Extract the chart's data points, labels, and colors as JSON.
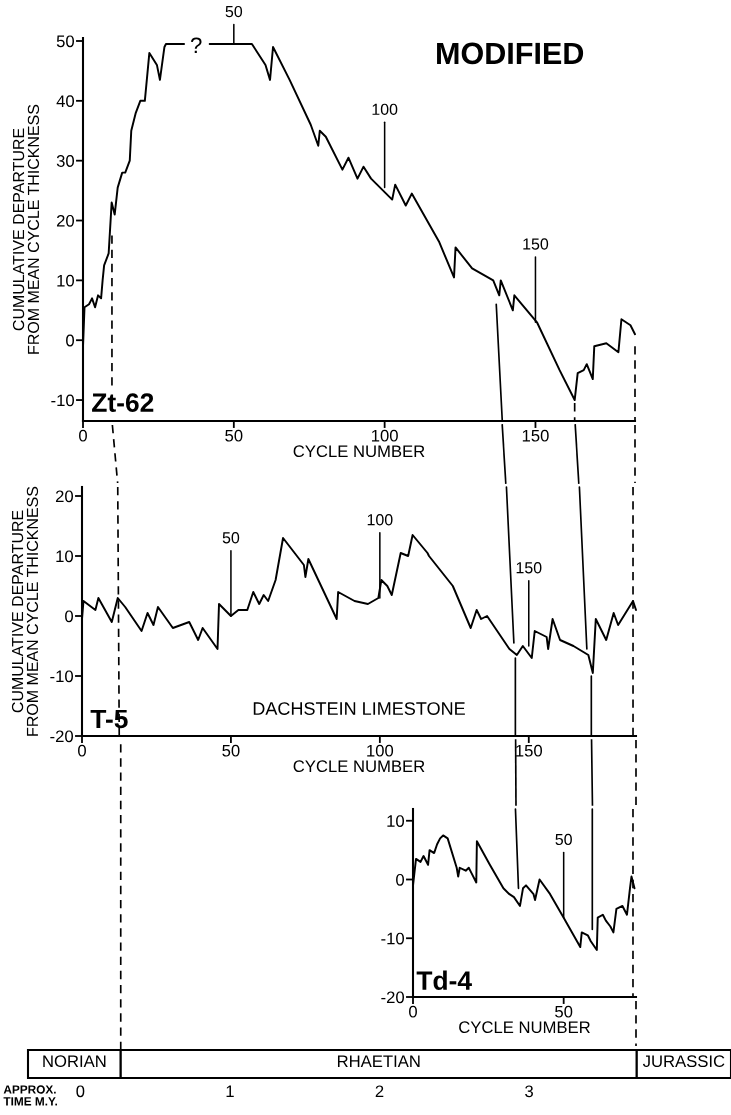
{
  "chart_data": [
    {
      "type": "line",
      "title": "Zt-62",
      "xlabel": "CYCLE NUMBER",
      "ylabel": "CUMULATIVE DEPARTURE\nFROM MEAN CYCLE THICKNESS",
      "xlim": [
        0,
        183
      ],
      "xticks": [
        0,
        50,
        100,
        150
      ],
      "ylim": [
        -13.5,
        50.5
      ],
      "yticks": [
        -10,
        0,
        10,
        20,
        30,
        40,
        50
      ],
      "series": [
        {
          "color": "#000000",
          "x": [
            0,
            0.5,
            2,
            3,
            4,
            5,
            6,
            6.5,
            7,
            8.5,
            9.5,
            10.5,
            11.5,
            13,
            14,
            15.5,
            16,
            17.5,
            19,
            20.5,
            22,
            24.5,
            25.5,
            27,
            27.5,
            33.5,
            37.5,
            42,
            56,
            60.5,
            62,
            63,
            68.5,
            75.5,
            78,
            78.5,
            80.5,
            86,
            88,
            91,
            93,
            95.5,
            102.5,
            103.5,
            107,
            109,
            118,
            123,
            123.5,
            129,
            136,
            138,
            138.5,
            142.5,
            143,
            150.5,
            158,
            163,
            164,
            166,
            167,
            169,
            169.5,
            173.5,
            177.5,
            178.5,
            181.5,
            183
          ],
          "values": [
            -1,
            5.5,
            6,
            7,
            5.5,
            7.5,
            7,
            10,
            12.5,
            14.5,
            23,
            21,
            25.5,
            28,
            28,
            30,
            35,
            38,
            40,
            40,
            48,
            46,
            43.5,
            49,
            49.5,
            49.5,
            null,
            49.5,
            49.5,
            46,
            43.5,
            49,
            43.5,
            36,
            32.5,
            35,
            34,
            28.5,
            30.5,
            27,
            29,
            27,
            23.5,
            26,
            22.5,
            24.5,
            16.5,
            10.5,
            15.5,
            12,
            10,
            7.5,
            10,
            5,
            7.5,
            3,
            -5,
            -10,
            -5.5,
            -5,
            -4,
            -6.5,
            -1,
            -0.5,
            -2,
            3.5,
            2.5,
            1
          ]
        },
        {
          "color": "#000000",
          "line_style": "dashed",
          "x": [
            9.6,
            9.6
          ],
          "values": [
            17.5,
            -8
          ]
        },
        {
          "color": "#000000",
          "x": [
            137,
            139
          ],
          "values": [
            6,
            -13.5
          ]
        },
        {
          "color": "#000000",
          "line_style": "dashed",
          "x": [
            163,
            163
          ],
          "values": [
            -10.5,
            -13.5
          ]
        },
        {
          "color": "#000000",
          "line_style": "dashed",
          "x": [
            183,
            183
          ],
          "values": [
            -1,
            -13.5
          ]
        }
      ],
      "annotations": [
        {
          "text": "50",
          "x": 50,
          "y": 49.5
        },
        {
          "text": "100",
          "x": 100,
          "y": 25.5
        },
        {
          "text": "150",
          "x": 150,
          "y": 3
        },
        "?",
        "MODIFIED"
      ]
    },
    {
      "type": "line",
      "title": "T-5",
      "xlabel": "CYCLE NUMBER",
      "ylabel": "CUMULATIVE DEPARTURE\nFROM MEAN CYCLE THICKNESS",
      "xlim": [
        0,
        186
      ],
      "xticks": [
        0,
        50,
        100,
        150
      ],
      "ylim": [
        -20,
        21.5
      ],
      "yticks": [
        -20,
        -10,
        0,
        10,
        20
      ],
      "series": [
        {
          "color": "#000000",
          "x": [
            0,
            0.5,
            4.5,
            5.5,
            10,
            12,
            14.5,
            20,
            22,
            24,
            25.5,
            30.5,
            36,
            39,
            40.5,
            45.5,
            46,
            50,
            52.5,
            55.5,
            57.5,
            59.5,
            61,
            62.5,
            65,
            67.5,
            74.5,
            75,
            76,
            85.5,
            86,
            91.5,
            96,
            99.5,
            100.5,
            102.5,
            104,
            107,
            109.5,
            111,
            116,
            116.5,
            124.5,
            130.5,
            132.5,
            134,
            136,
            143.5,
            146,
            148,
            151,
            152,
            156,
            156.5,
            158,
            160.5,
            165,
            170,
            171.5,
            172.5,
            176,
            178.5,
            180,
            185,
            186
          ],
          "values": [
            -0.5,
            2.5,
            1,
            3,
            -1,
            3,
            1.5,
            -2.5,
            0.5,
            -1.5,
            1.5,
            -2,
            -1,
            -4,
            -2,
            -5.5,
            2,
            0,
            1,
            1,
            4,
            2,
            3.5,
            2.5,
            6,
            13,
            8.5,
            6.5,
            9.5,
            -0.5,
            4,
            2.5,
            2,
            3,
            6,
            5,
            3.5,
            10.5,
            10,
            13.5,
            10.5,
            10,
            5,
            -2,
            1,
            -0.5,
            0,
            -5.5,
            -6.5,
            -5,
            -7,
            -2.5,
            -3.5,
            -5.5,
            -0.5,
            -4,
            -5,
            -6.5,
            -9.5,
            -0.5,
            -4,
            0.5,
            -1.5,
            2.5,
            1
          ]
        },
        {
          "color": "#000000",
          "line_style": "dashed",
          "x": [
            12,
            12.5
          ],
          "values": [
            21.5,
            -20
          ]
        },
        {
          "color": "#000000",
          "x": [
            142.5,
            145
          ],
          "values": [
            21.5,
            -4.5
          ]
        },
        {
          "color": "#000000",
          "x": [
            145.5,
            145.5
          ],
          "values": [
            -7,
            -20
          ]
        },
        {
          "color": "#000000",
          "x": [
            167,
            169.5
          ],
          "values": [
            21.5,
            -5.5
          ]
        },
        {
          "color": "#000000",
          "x": [
            171,
            171
          ],
          "values": [
            -10,
            -20
          ]
        },
        {
          "color": "#000000",
          "line_style": "dashed",
          "x": [
            185,
            185
          ],
          "values": [
            21.5,
            -20
          ]
        }
      ],
      "annotations": [
        {
          "text": "50",
          "x": 50,
          "y": 0
        },
        {
          "text": "100",
          "x": 100,
          "y": 3
        },
        {
          "text": "150",
          "x": 150,
          "y": -5
        },
        "DACHSTEIN LIMESTONE"
      ]
    },
    {
      "type": "line",
      "title": "Td-4",
      "xlabel": "CYCLE NUMBER",
      "xlim": [
        0,
        74
      ],
      "xticks": [
        0,
        50
      ],
      "ylim": [
        -20,
        12
      ],
      "yticks": [
        -20,
        -10,
        0,
        10
      ],
      "series": [
        {
          "color": "#000000",
          "x": [
            0,
            1,
            2.5,
            3.5,
            5,
            5.5,
            7,
            8,
            9,
            10,
            11.5,
            14.5,
            15,
            15.5,
            17.5,
            18.5,
            19.5,
            21,
            21.2,
            25.5,
            30,
            32,
            33.5,
            35.5,
            36.5,
            37.5,
            40,
            40.5,
            42,
            45.5,
            50,
            55.5,
            56,
            58,
            59,
            61,
            61.3,
            63,
            64,
            65.5,
            66.5,
            67.5,
            69.5,
            71,
            72,
            72.5,
            73.5
          ],
          "values": [
            -1,
            3.5,
            3,
            4,
            2.5,
            5,
            4.5,
            6,
            7,
            7.5,
            7,
            2,
            0.5,
            2,
            1.5,
            2,
            1,
            -0.5,
            6.5,
            2.5,
            -1.5,
            -2.5,
            -3,
            -4.5,
            -1.5,
            -1,
            -2.5,
            -3.5,
            0,
            -2.5,
            -6.5,
            -11.5,
            -9,
            -9.5,
            -10.5,
            -12,
            -6.5,
            -6,
            -7,
            -8,
            -9,
            -5,
            -4.5,
            -6,
            -1.5,
            0.5,
            -1.5
          ]
        },
        {
          "color": "#000000",
          "x": [
            34,
            35
          ],
          "values": [
            12,
            -1.5
          ]
        },
        {
          "color": "#000000",
          "x": [
            59.5,
            59.5
          ],
          "values": [
            12,
            -8.5
          ]
        },
        {
          "color": "#000000",
          "line_style": "dashed",
          "x": [
            73,
            73
          ],
          "values": [
            12,
            -20
          ]
        }
      ],
      "annotations": [
        {
          "text": "50",
          "x": 50,
          "y": -6.5
        }
      ]
    },
    {
      "type": "bar",
      "orientation": "horizontal",
      "xlabel": "APPROX.\nTIME M.Y.",
      "xlim": [
        -0.35,
        4.35
      ],
      "xticks": [
        0,
        1,
        2,
        3
      ],
      "categories": [
        null
      ],
      "ref_lines": [
        {
          "axis": "x",
          "value": 0.27,
          "line_style": "dashed"
        }
      ],
      "series": [
        {
          "name": "NORIAN",
          "color": "#ffffff",
          "values": [
            0.62
          ],
          "base": [
            -0.35
          ]
        },
        {
          "name": "RHAETIAN",
          "color": "#ffffff",
          "values": [
            3.45
          ],
          "base": [
            0.27
          ]
        },
        {
          "name": "JURASSIC",
          "color": "#ffffff",
          "values": [
            0.63
          ],
          "base": [
            3.72
          ]
        }
      ]
    }
  ]
}
